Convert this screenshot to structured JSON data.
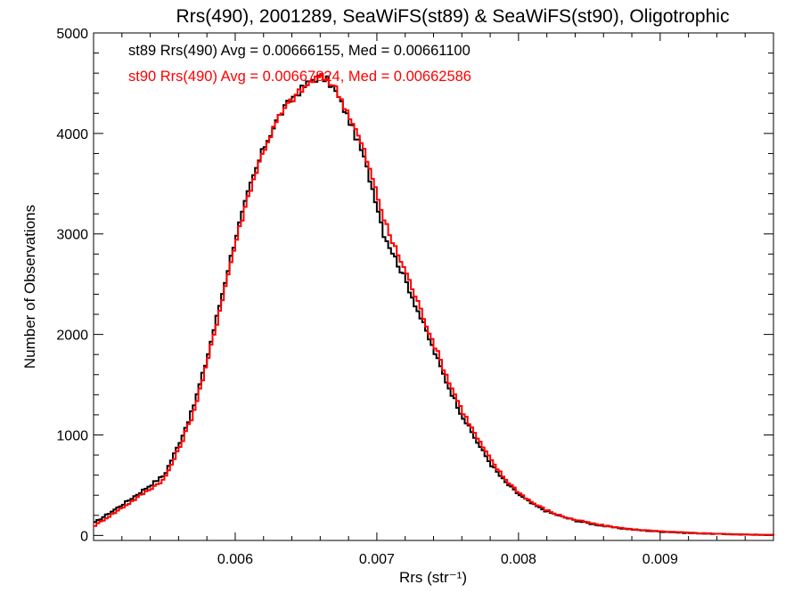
{
  "chart_data": {
    "type": "line",
    "title": "Rrs(490), 2001289, SeaWiFS(st89) & SeaWiFS(st90), Oligotrophic",
    "xlabel": "Rrs (str⁻¹)",
    "ylabel": "Number of Observations",
    "xlim": [
      0.005,
      0.0098
    ],
    "ylim": [
      -50,
      5000
    ],
    "grid": false,
    "x_ticks": [
      0.006,
      0.007,
      0.008,
      0.009
    ],
    "x_tick_labels": [
      "0.006",
      "0.007",
      "0.008",
      "0.009"
    ],
    "y_ticks": [
      0,
      1000,
      2000,
      3000,
      4000,
      5000
    ],
    "y_tick_labels": [
      "0",
      "1000",
      "2000",
      "3000",
      "4000",
      "5000"
    ],
    "annotations": [
      {
        "text": "st89 Rrs(490) Avg = 0.00666155, Med = 0.00661100",
        "color": "#000000"
      },
      {
        "text": "st90 Rrs(490) Avg = 0.00667824, Med = 0.00662586",
        "color": "#ff0000"
      }
    ],
    "series": [
      {
        "color": "#000000",
        "step": true,
        "x": [
          0.005,
          0.00525,
          0.0055,
          0.0056,
          0.0057,
          0.0058,
          0.0059,
          0.006,
          0.0061,
          0.0062,
          0.0063,
          0.0064,
          0.0065,
          0.00655,
          0.0066,
          0.00665,
          0.0067,
          0.0068,
          0.0069,
          0.007,
          0.00705,
          0.0071,
          0.0072,
          0.0073,
          0.0074,
          0.0075,
          0.0076,
          0.0077,
          0.0078,
          0.0079,
          0.008,
          0.0081,
          0.0082,
          0.0083,
          0.0084,
          0.0085,
          0.0086,
          0.0087,
          0.0088,
          0.0089,
          0.009,
          0.0092,
          0.0094,
          0.0096,
          0.0098
        ],
        "y": [
          120,
          350,
          600,
          900,
          1250,
          1750,
          2350,
          2950,
          3450,
          3850,
          4150,
          4350,
          4480,
          4540,
          4560,
          4530,
          4440,
          4150,
          3800,
          3300,
          3000,
          2850,
          2550,
          2200,
          1850,
          1500,
          1200,
          950,
          720,
          540,
          410,
          310,
          240,
          190,
          150,
          120,
          95,
          75,
          60,
          48,
          38,
          25,
          15,
          8,
          5
        ]
      },
      {
        "color": "#ff0000",
        "step": true,
        "x": [
          0.005,
          0.00525,
          0.0055,
          0.0056,
          0.0057,
          0.0058,
          0.0059,
          0.006,
          0.0061,
          0.0062,
          0.0063,
          0.0064,
          0.0065,
          0.00655,
          0.0066,
          0.00665,
          0.0067,
          0.0068,
          0.0069,
          0.007,
          0.00705,
          0.0071,
          0.0072,
          0.0073,
          0.0074,
          0.0075,
          0.0076,
          0.0077,
          0.0078,
          0.0079,
          0.008,
          0.0081,
          0.0082,
          0.0083,
          0.0084,
          0.0085,
          0.0086,
          0.0087,
          0.0088,
          0.0089,
          0.009,
          0.0092,
          0.0094,
          0.0096,
          0.0098
        ],
        "y": [
          90,
          320,
          560,
          850,
          1200,
          1700,
          2300,
          2900,
          3420,
          3830,
          4140,
          4340,
          4470,
          4530,
          4560,
          4540,
          4470,
          4200,
          3870,
          3400,
          3150,
          2950,
          2640,
          2280,
          1920,
          1560,
          1250,
          990,
          760,
          570,
          430,
          325,
          250,
          195,
          155,
          125,
          98,
          78,
          62,
          50,
          40,
          27,
          17,
          9,
          5
        ]
      }
    ]
  }
}
